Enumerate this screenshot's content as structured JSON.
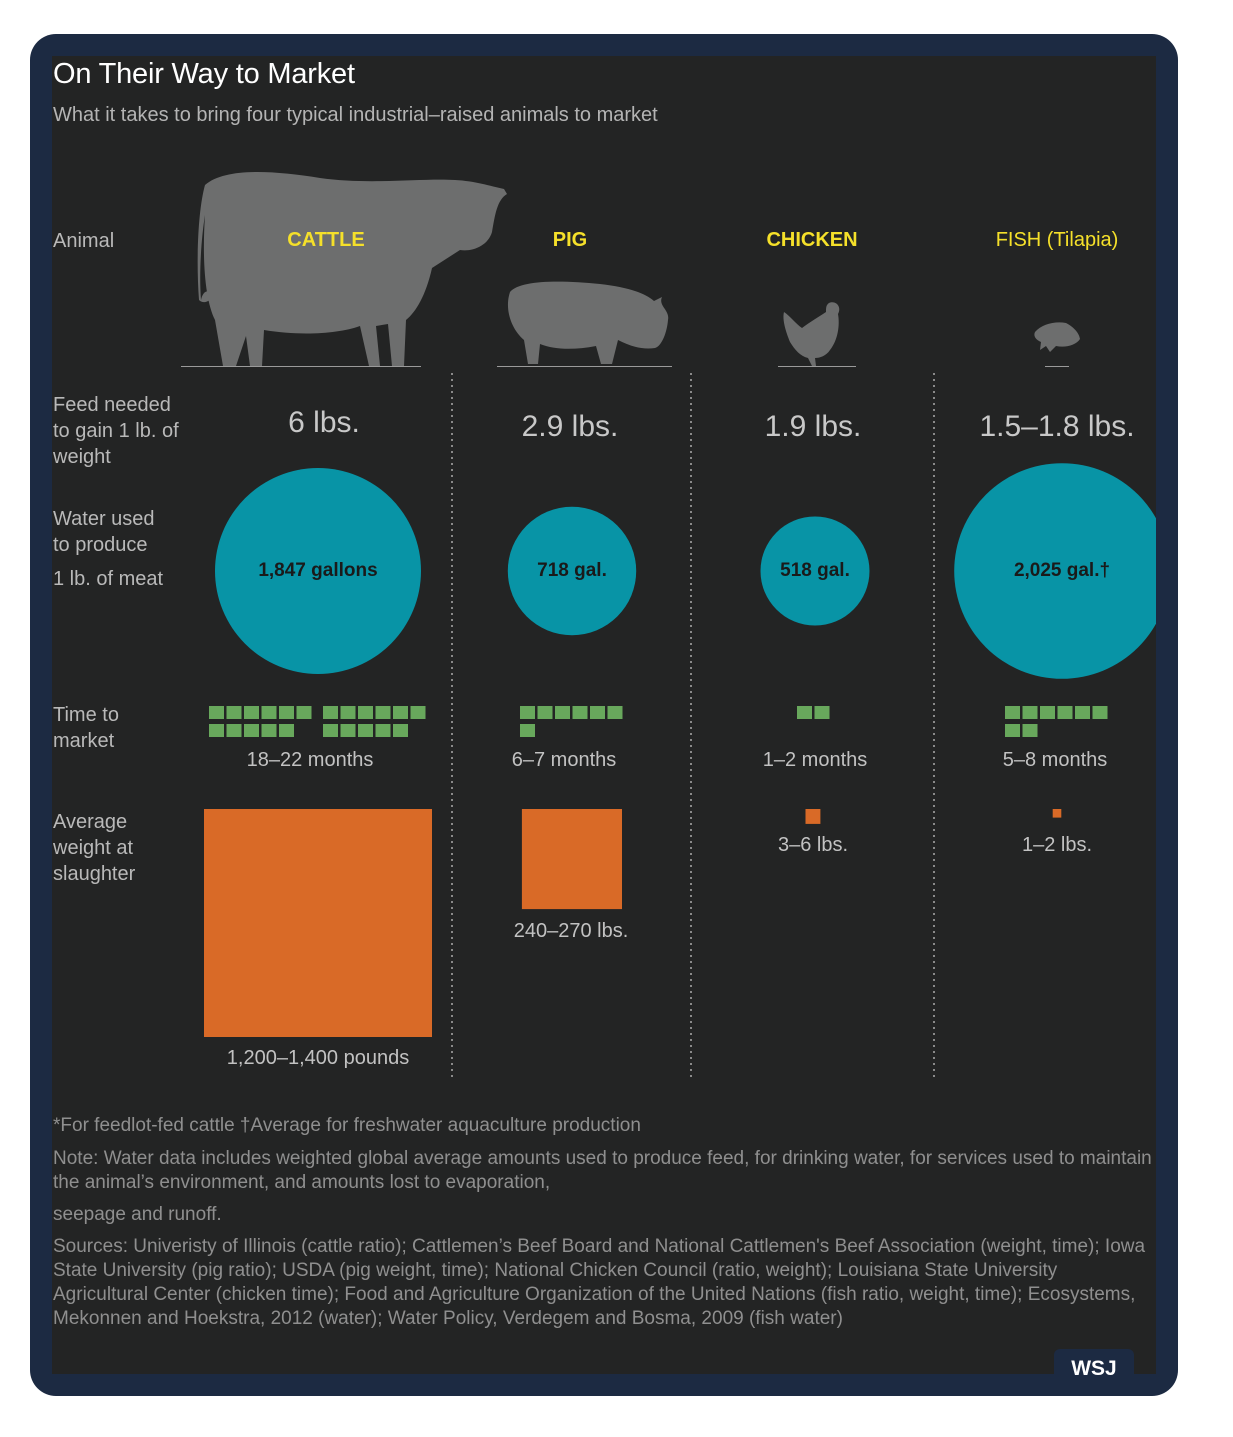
{
  "header": {
    "title": "On Their Way to Market",
    "subtitle": "What it takes to bring four typical industrial–raised animals to market"
  },
  "row_labels": {
    "animal": "Animal",
    "feed": [
      "Feed needed",
      "to gain 1 lb. of",
      "weight"
    ],
    "water": [
      "Water used",
      "to produce",
      "1 lb. of meat"
    ],
    "time": [
      "Time to",
      "market"
    ],
    "weight": [
      "Average",
      "weight at",
      "slaughter"
    ]
  },
  "chart_data": {
    "type": "table",
    "columns": [
      "CATTLE",
      "PIG",
      "CHICKEN",
      "FISH (Tilapia)"
    ],
    "feed_labels": [
      "6 lbs.",
      "2.9 lbs.",
      "1.9 lbs.",
      "1.5–1.8 lbs."
    ],
    "water_gallons": [
      1847,
      718,
      518,
      2025
    ],
    "water_labels": [
      "1,847 gallons",
      "718 gal.",
      "518 gal.",
      "2,025 gal.†"
    ],
    "time_months_max": [
      22,
      7,
      2,
      8
    ],
    "time_labels": [
      "18–22 months",
      "6–7 months",
      "1–2 months",
      "5–8 months"
    ],
    "weight_lbs_max": [
      1400,
      270,
      6,
      2
    ],
    "weight_labels": [
      "1,200–1,400 pounds",
      "240–270 lbs.",
      "3–6 lbs.",
      "1–2 lbs."
    ],
    "colors": {
      "water": "#0894a6",
      "time": "#68a85c",
      "weight": "#d96a27",
      "animal_label": "#f5e02a",
      "silhouette": "#6d6e6e"
    }
  },
  "footnotes": {
    "marks": "*For feedlot-fed cattle †Average for freshwater aquaculture production",
    "note": "Note: Water data includes weighted global average amounts used to produce feed, for drinking water, for services used to maintain the animal’s environment, and amounts lost to evaporation,",
    "note_cont": "seepage and runoff.",
    "sources": "Sources: Univeristy of Illinois (cattle ratio); Cattlemen’s Beef Board and National Cattlemen's Beef Association (weight, time); Iowa State University (pig ratio); USDA (pig weight, time); National Chicken Council (ratio, weight); Louisiana State University Agricultural Center (chicken time); Food and Agriculture Organization of the United Nations (fish ratio, weight, time); Ecosystems, Mekonnen and Hoekstra, 2012 (water); Water Policy, Verdegem and Bosma, 2009 (fish water)"
  },
  "brand": "WSJ"
}
